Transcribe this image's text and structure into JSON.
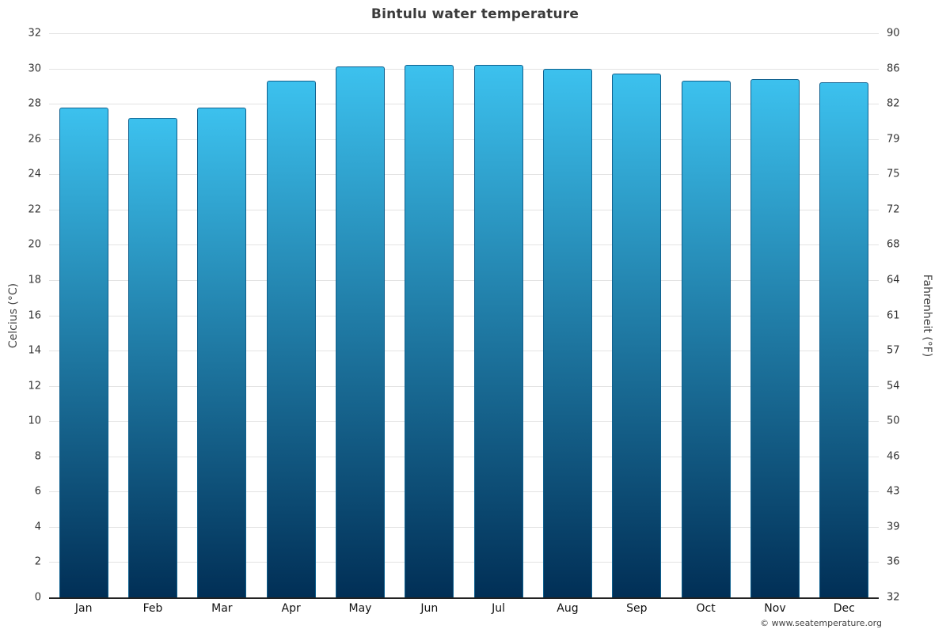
{
  "footer": "© www.seatemperature.org",
  "chart_data": {
    "type": "bar",
    "title": "Bintulu water temperature",
    "categories": [
      "Jan",
      "Feb",
      "Mar",
      "Apr",
      "May",
      "Jun",
      "Jul",
      "Aug",
      "Sep",
      "Oct",
      "Nov",
      "Dec"
    ],
    "values": [
      27.8,
      27.2,
      27.8,
      29.3,
      30.1,
      30.2,
      30.2,
      30.0,
      29.7,
      29.3,
      29.4,
      29.2
    ],
    "ylabel_left": "Celcius (°C)",
    "ylabel_right": "Fahrenheit (°F)",
    "ylim": [
      0,
      32
    ],
    "yticks_left": [
      0,
      2,
      4,
      6,
      8,
      10,
      12,
      14,
      16,
      18,
      20,
      22,
      24,
      26,
      28,
      30,
      32
    ],
    "yticks_right": [
      "32",
      "36",
      "39",
      "43",
      "46",
      "50",
      "54",
      "57",
      "61",
      "64",
      "68",
      "72",
      "75",
      "79",
      "82",
      "86",
      "90"
    ],
    "grid": true,
    "legend": "none",
    "bar_color_top": "#3cc1ee",
    "bar_color_bottom": "#012f56",
    "bar_border": "#0f608e",
    "grid_color": "#e3e3e3",
    "axis_color": "#222222"
  }
}
